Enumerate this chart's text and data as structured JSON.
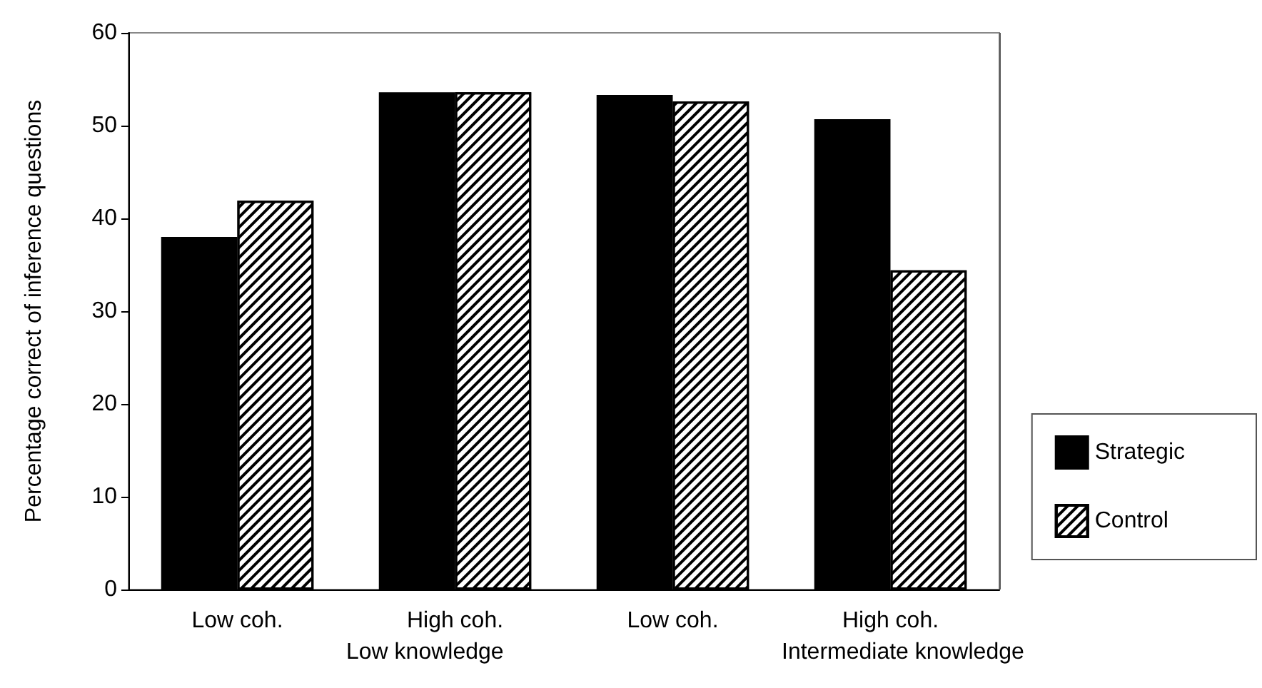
{
  "chart_data": {
    "type": "bar",
    "ylabel": "Percentage correct of inference questions",
    "categories": [
      "Low coh.",
      "High coh.",
      "Low coh.",
      "High coh."
    ],
    "series": [
      {
        "name": "Strategic",
        "color": "#000000",
        "values": [
          38.0,
          53.6,
          53.3,
          50.7
        ]
      },
      {
        "name": "Control",
        "color": "#ffffff",
        "values": [
          41.9,
          53.6,
          52.6,
          34.4
        ]
      }
    ],
    "annotations": [
      "Low knowledge",
      "Intermediate knowledge"
    ],
    "ylim": [
      0,
      60
    ],
    "yticks": [
      0,
      10,
      20,
      30,
      40,
      50,
      60
    ],
    "grid": false,
    "legend": "right"
  }
}
